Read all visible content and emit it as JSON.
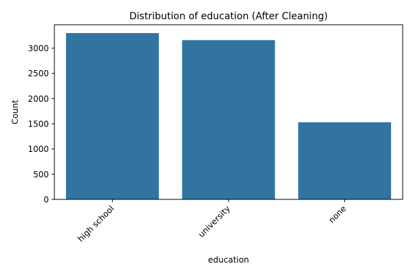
{
  "chart_data": {
    "type": "bar",
    "title": "Distribution of education (After Cleaning)",
    "xlabel": "education",
    "ylabel": "Count",
    "categories": [
      "high school",
      "university",
      "none"
    ],
    "values": [
      3300,
      3160,
      1530
    ],
    "ylim": [
      0,
      3465
    ],
    "yticks": [
      0,
      500,
      1000,
      1500,
      2000,
      2500,
      3000
    ],
    "bar_color": "#3274a1",
    "grid": false,
    "legend": "none"
  }
}
